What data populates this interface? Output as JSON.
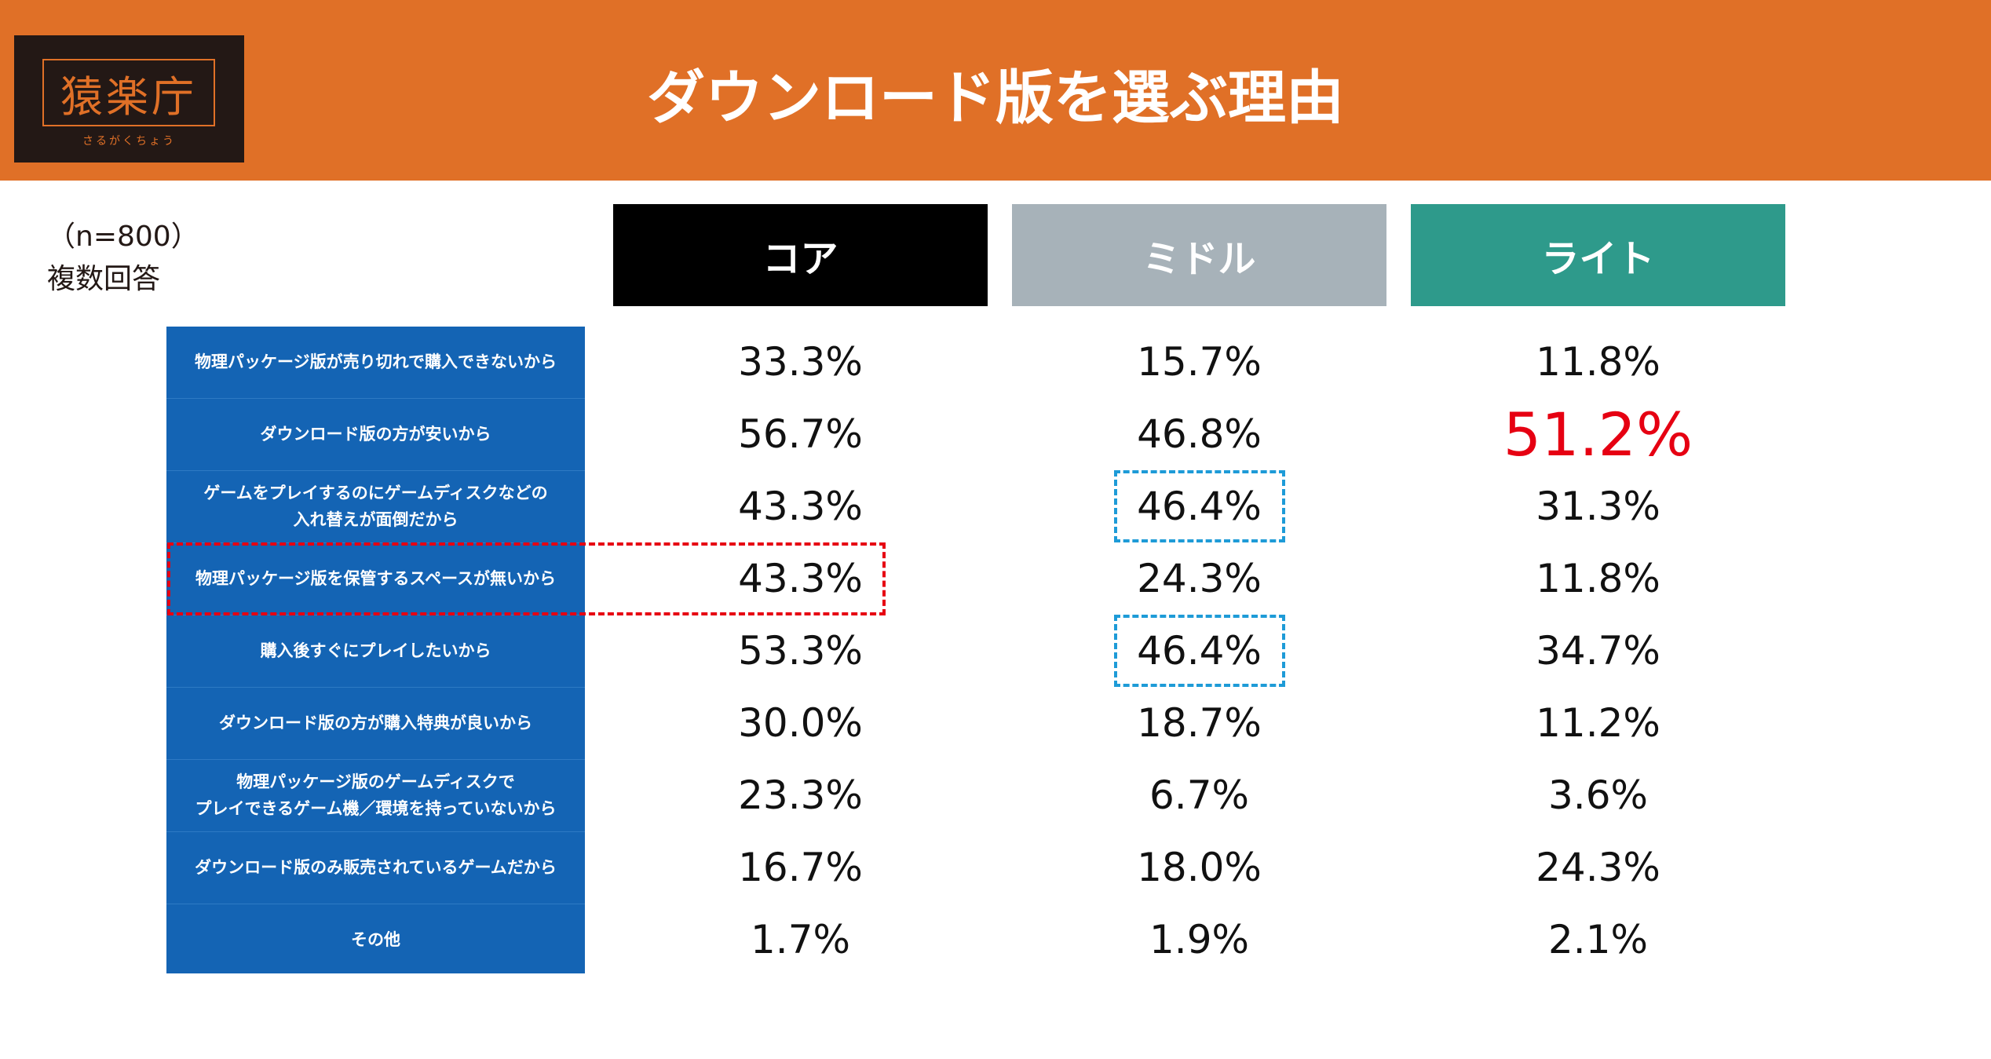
{
  "header": {
    "title": "ダウンロード版を選ぶ理由",
    "logo": {
      "text": "猿楽庁",
      "kana": "さるがくちょう"
    },
    "colors": {
      "header_bg": "#E07027",
      "logo_bg": "#231815"
    }
  },
  "notes": {
    "sample": "（n=800）",
    "answer_type": "複数回答"
  },
  "chart_data": {
    "type": "table",
    "title": "ダウンロード版を選ぶ理由",
    "columns": [
      {
        "name": "コア",
        "color": "#000000"
      },
      {
        "name": "ミドル",
        "color": "#A7B2B9"
      },
      {
        "name": "ライト",
        "color": "#2E9A8B"
      }
    ],
    "rows": [
      {
        "label": "物理パッケージ版が売り切れで購入できないから",
        "values": [
          "33.3%",
          "15.7%",
          "11.8%"
        ]
      },
      {
        "label": "ダウンロード版の方が安いから",
        "values": [
          "56.7%",
          "46.8%",
          "51.2%"
        ]
      },
      {
        "label": "ゲームをプレイするのにゲームディスクなどの\n入れ替えが面倒だから",
        "values": [
          "43.3%",
          "46.4%",
          "31.3%"
        ]
      },
      {
        "label": "物理パッケージ版を保管するスペースが無いから",
        "values": [
          "43.3%",
          "24.3%",
          "11.8%"
        ]
      },
      {
        "label": "購入後すぐにプレイしたいから",
        "values": [
          "53.3%",
          "46.4%",
          "34.7%"
        ]
      },
      {
        "label": "ダウンロード版の方が購入特典が良いから",
        "values": [
          "30.0%",
          "18.7%",
          "11.2%"
        ]
      },
      {
        "label": "物理パッケージ版のゲームディスクで\nプレイできるゲーム機／環境を持っていないから",
        "values": [
          "23.3%",
          "6.7%",
          "3.6%"
        ]
      },
      {
        "label": "ダウンロード版のみ販売されているゲームだから",
        "values": [
          "16.7%",
          "18.0%",
          "24.3%"
        ]
      },
      {
        "label": "その他",
        "values": [
          "1.7%",
          "1.9%",
          "2.1%"
        ]
      }
    ],
    "highlights": [
      {
        "row": 1,
        "col": 2,
        "style": "large-red-text",
        "color": "#E60012"
      },
      {
        "row": 3,
        "col": 0,
        "style": "red-dashed-box-with-label",
        "color": "#E60012"
      },
      {
        "row": 2,
        "col": 1,
        "style": "blue-dashed-box",
        "color": "#1E9BD7"
      },
      {
        "row": 4,
        "col": 1,
        "style": "blue-dashed-box",
        "color": "#1E9BD7"
      }
    ],
    "row_label_bg": "#1464B4"
  }
}
